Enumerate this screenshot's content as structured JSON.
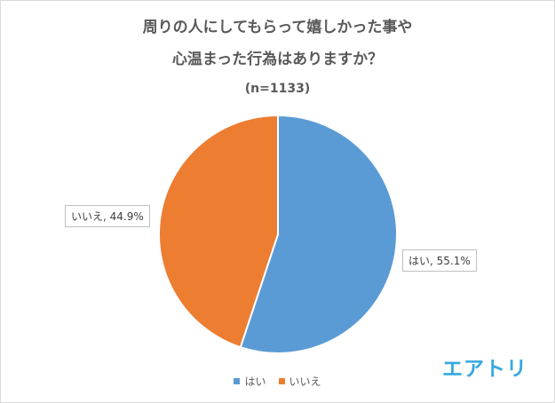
{
  "title_line1": "周りの人にしてもらって嬉しかった事や",
  "title_line2": "心温まった行為はありますか？",
  "subtitle": "(n=1133)",
  "logo": "エアトリ",
  "chart_data": {
    "type": "pie",
    "slices": [
      {
        "name": "はい",
        "value": 55.1,
        "label": "はい, 55.1%",
        "color": "#5b9bd5"
      },
      {
        "name": "いいえ",
        "value": 44.9,
        "label": "いいえ, 44.9%",
        "color": "#ed7d31"
      }
    ],
    "legend_position": "bottom"
  }
}
